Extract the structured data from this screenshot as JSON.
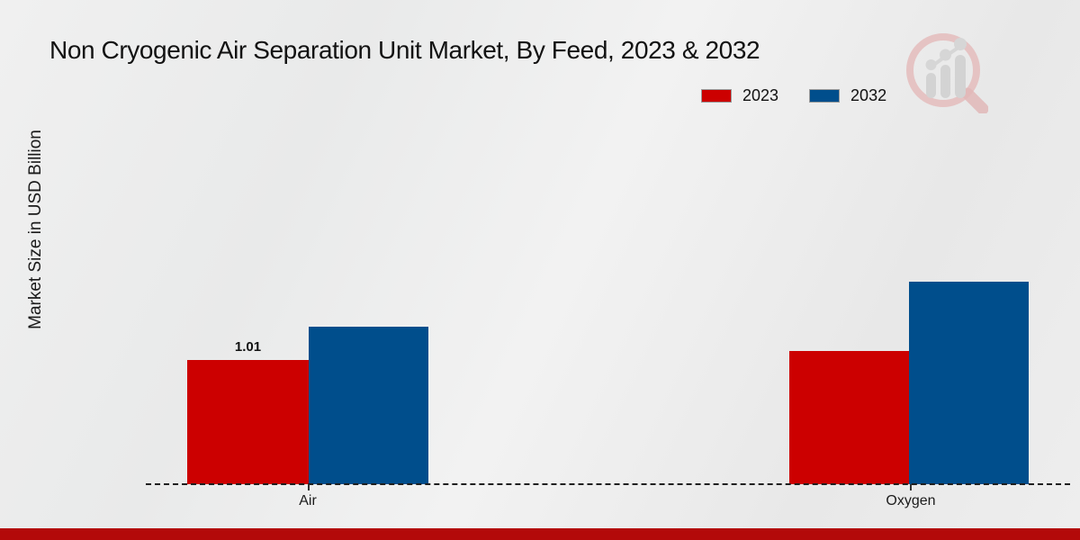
{
  "page": {
    "title": "Non Cryogenic Air Separation Unit Market, By Feed, 2023 & 2032"
  },
  "chart_data": {
    "type": "bar",
    "title": "Non Cryogenic Air Separation Unit Market, By Feed, 2023 & 2032",
    "xlabel": "",
    "ylabel": "Market Size in USD Billion",
    "categories": [
      "Air",
      "Oxygen"
    ],
    "series": [
      {
        "name": "2023",
        "color": "#cc0000",
        "values": [
          1.01,
          1.08
        ]
      },
      {
        "name": "2032",
        "color": "#004e8c",
        "values": [
          1.28,
          1.65
        ]
      }
    ],
    "value_labels_shown": [
      "1.01"
    ],
    "legend_position": "top-right",
    "grid": false,
    "baseline_style": "dashed",
    "y_axis_ticks_shown": false
  },
  "branding": {
    "watermark_icon": "magnifier-bar-chart-logo",
    "footer_color": "#b30909"
  }
}
